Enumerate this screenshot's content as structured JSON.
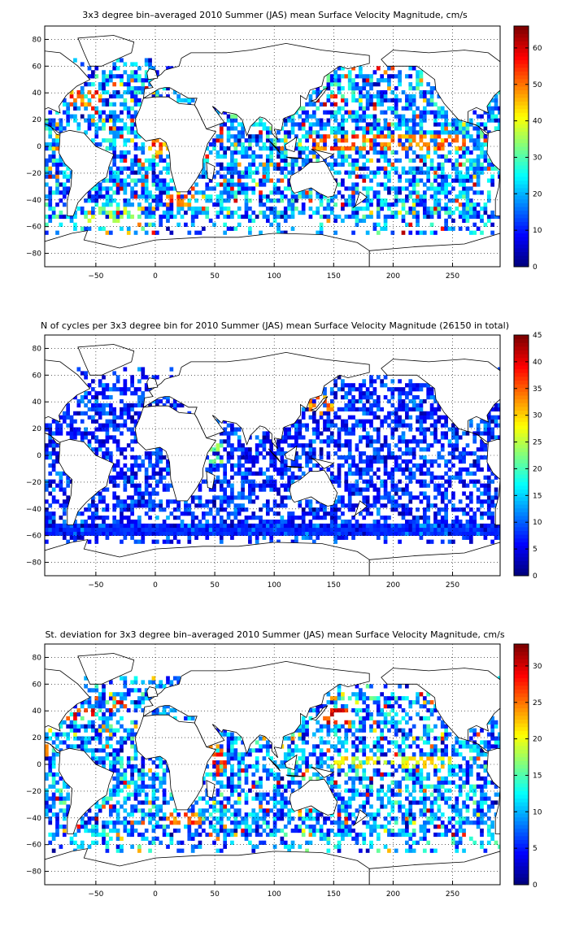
{
  "chart_data": [
    {
      "type": "heatmap",
      "title": "3x3 degree bin–averaged 2010 Summer (JAS) mean Surface Velocity Magnitude, cm/s",
      "xlim": [
        -93,
        290
      ],
      "ylim": [
        -90,
        90
      ],
      "xticks": [
        -50,
        0,
        50,
        100,
        150,
        200,
        250
      ],
      "yticks": [
        80,
        60,
        40,
        20,
        0,
        -20,
        -40,
        -60,
        -80
      ],
      "colorbar": {
        "min": 0,
        "max": 66,
        "ticks": [
          0,
          10,
          20,
          30,
          40,
          50,
          60
        ]
      },
      "grid": "dotted",
      "regions": [
        {
          "x": [
            -10,
            35
          ],
          "y": [
            -6,
            6
          ],
          "value": 52
        },
        {
          "x": [
            130,
            260
          ],
          "y": [
            -4,
            8
          ],
          "value": 55
        },
        {
          "x": [
            140,
            160
          ],
          "y": [
            30,
            40
          ],
          "value": 60
        },
        {
          "x": [
            -75,
            -45
          ],
          "y": [
            30,
            42
          ],
          "value": 55
        },
        {
          "x": [
            -60,
            -10
          ],
          "y": [
            -60,
            -45
          ],
          "value": 38
        },
        {
          "x": [
            10,
            40
          ],
          "y": [
            -45,
            -35
          ],
          "value": 55
        },
        {
          "x": [
            45,
            60
          ],
          "y": [
            2,
            15
          ],
          "value": 60
        }
      ]
    },
    {
      "type": "heatmap",
      "title": "N of cycles per 3x3 degree bin for 2010 Summer (JAS) mean Surface Velocity Magnitude (26150 in total)",
      "xlim": [
        -93,
        290
      ],
      "ylim": [
        -90,
        90
      ],
      "xticks": [
        -50,
        0,
        50,
        100,
        150,
        200,
        250
      ],
      "yticks": [
        80,
        60,
        40,
        20,
        0,
        -20,
        -40,
        -60,
        -80
      ],
      "colorbar": {
        "min": 0,
        "max": 45,
        "ticks": [
          0,
          5,
          10,
          15,
          20,
          25,
          30,
          35,
          40,
          45
        ]
      },
      "grid": "dotted",
      "regions": [
        {
          "x": [
            -93,
            290
          ],
          "y": [
            -60,
            -53
          ],
          "value": 8
        },
        {
          "x": [
            130,
            150
          ],
          "y": [
            30,
            45
          ],
          "value": 35
        },
        {
          "x": [
            45,
            60
          ],
          "y": [
            -5,
            10
          ],
          "value": 25
        }
      ]
    },
    {
      "type": "heatmap",
      "title": "St. deviation for 3x3 degree bin–averaged 2010 Summer (JAS) mean Surface Velocity Magnitude, cm/s",
      "xlim": [
        -93,
        290
      ],
      "ylim": [
        -90,
        90
      ],
      "xticks": [
        -50,
        0,
        50,
        100,
        150,
        200,
        250
      ],
      "yticks": [
        80,
        60,
        40,
        20,
        0,
        -20,
        -40,
        -60,
        -80
      ],
      "colorbar": {
        "min": 0,
        "max": 33,
        "ticks": [
          0,
          5,
          10,
          15,
          20,
          25,
          30
        ]
      },
      "grid": "dotted",
      "regions": [
        {
          "x": [
            140,
            165
          ],
          "y": [
            30,
            42
          ],
          "value": 30
        },
        {
          "x": [
            -75,
            -50
          ],
          "y": [
            32,
            42
          ],
          "value": 30
        },
        {
          "x": [
            10,
            40
          ],
          "y": [
            -45,
            -35
          ],
          "value": 28
        },
        {
          "x": [
            45,
            60
          ],
          "y": [
            -5,
            15
          ],
          "value": 28
        },
        {
          "x": [
            150,
            250
          ],
          "y": [
            -4,
            6
          ],
          "value": 22
        }
      ]
    }
  ]
}
